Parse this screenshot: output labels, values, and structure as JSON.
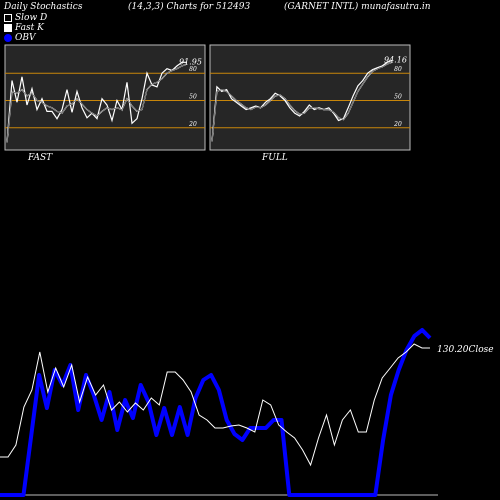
{
  "header": {
    "left": "Daily Stochastics",
    "center": "(14,3,3) Charts for 512493",
    "right": "(GARNET INTL) munafasutra.in"
  },
  "legend": [
    "Slow  D",
    "Fast K",
    "OBV"
  ],
  "colors": {
    "obv": "#0000ff",
    "band": "#c8860a",
    "line": "#ffffff",
    "panel": "#262626"
  },
  "chart_data": [
    {
      "type": "line",
      "panel": "FAST",
      "title": "FAST",
      "ylim": [
        0,
        100
      ],
      "yticks": [
        20,
        50,
        80
      ],
      "last_label": "91.95",
      "series": [
        {
          "name": "Fast K",
          "values": [
            4,
            72,
            48,
            76,
            45,
            63,
            40,
            52,
            38,
            38,
            30,
            40,
            62,
            37,
            60,
            42,
            31,
            36,
            30,
            52,
            45,
            28,
            50,
            40,
            70,
            25,
            30,
            52,
            80,
            67,
            65,
            80,
            85,
            83,
            88,
            92,
            91.95
          ]
        },
        {
          "name": "Slow D",
          "values": [
            4,
            60,
            58,
            62,
            55,
            58,
            50,
            48,
            44,
            42,
            38,
            36,
            44,
            46,
            52,
            46,
            40,
            36,
            33,
            38,
            42,
            40,
            42,
            40,
            52,
            44,
            38,
            40,
            62,
            68,
            70,
            74,
            80,
            83,
            85,
            88,
            90
          ]
        }
      ]
    },
    {
      "type": "line",
      "panel": "FULL",
      "title": "FULL",
      "ylim": [
        0,
        100
      ],
      "yticks": [
        20,
        50,
        80
      ],
      "last_label": "94.16",
      "series": [
        {
          "name": "Fast K",
          "values": [
            5,
            65,
            60,
            62,
            52,
            48,
            44,
            40,
            42,
            44,
            42,
            48,
            52,
            58,
            55,
            50,
            42,
            36,
            33,
            38,
            45,
            40,
            42,
            40,
            42,
            36,
            28,
            30,
            42,
            55,
            66,
            72,
            80,
            84,
            86,
            88,
            92,
            94.16
          ]
        },
        {
          "name": "Slow D",
          "values": [
            5,
            60,
            62,
            60,
            55,
            50,
            46,
            42,
            40,
            43,
            42,
            45,
            50,
            55,
            56,
            52,
            45,
            39,
            35,
            36,
            42,
            42,
            41,
            40,
            40,
            37,
            31,
            29,
            36,
            48,
            60,
            68,
            76,
            82,
            85,
            87,
            90,
            92
          ]
        }
      ]
    },
    {
      "type": "line",
      "panel": "price",
      "close_label": "130.20",
      "close_suffix": "Close",
      "series": [
        {
          "name": "Close",
          "values": [
            457,
            457,
            445,
            407,
            390,
            352,
            392,
            368,
            387,
            365,
            402,
            377,
            395,
            385,
            410,
            402,
            412,
            403,
            410,
            398,
            405,
            372,
            372,
            380,
            392,
            415,
            420,
            428,
            428,
            426,
            425,
            428,
            432,
            400,
            405,
            425,
            432,
            438,
            450,
            465,
            438,
            415,
            445,
            420,
            410,
            432,
            432,
            400,
            378,
            368,
            358,
            352,
            344,
            348,
            348
          ]
        },
        {
          "name": "OBV",
          "values": [
            495,
            495,
            495,
            495,
            435,
            375,
            408,
            370,
            385,
            365,
            410,
            375,
            395,
            420,
            392,
            430,
            400,
            418,
            385,
            402,
            435,
            408,
            435,
            407,
            435,
            398,
            380,
            375,
            390,
            420,
            434,
            440,
            428,
            428,
            428,
            420,
            420,
            495,
            495,
            495,
            495,
            495,
            495,
            495,
            495,
            495,
            495,
            495,
            495,
            440,
            395,
            370,
            350,
            336,
            330,
            338
          ]
        }
      ]
    }
  ]
}
